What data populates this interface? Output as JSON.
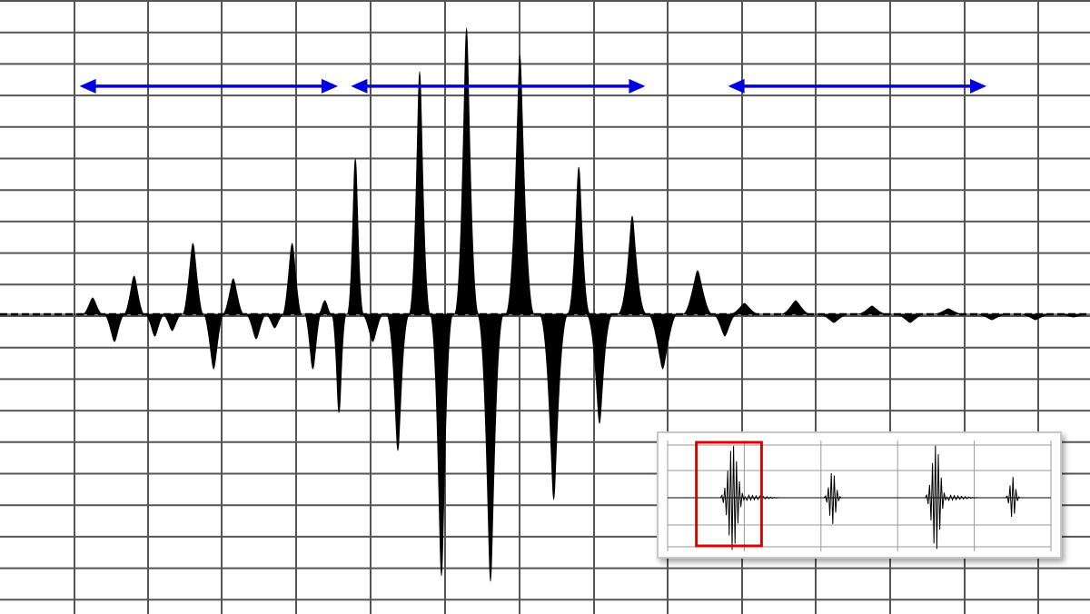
{
  "colors": {
    "background": "#ffffff",
    "grid": "#555555",
    "waveform": "#000000",
    "arrows": "#0000e0",
    "highlight": "#e00000",
    "inset_border": "#c8c8c8"
  },
  "main_plot": {
    "baseline_level": 0,
    "peaks": [
      {
        "t": 0.085,
        "a": 0.06
      },
      {
        "t": 0.105,
        "a": -0.1
      },
      {
        "t": 0.123,
        "a": 0.14
      },
      {
        "t": 0.142,
        "a": -0.08
      },
      {
        "t": 0.158,
        "a": -0.06
      },
      {
        "t": 0.177,
        "a": 0.26
      },
      {
        "t": 0.196,
        "a": -0.2
      },
      {
        "t": 0.214,
        "a": 0.13
      },
      {
        "t": 0.235,
        "a": -0.09
      },
      {
        "t": 0.252,
        "a": -0.05
      },
      {
        "t": 0.268,
        "a": 0.26
      },
      {
        "t": 0.287,
        "a": -0.2
      },
      {
        "t": 0.298,
        "a": 0.05
      },
      {
        "t": 0.311,
        "a": -0.36
      },
      {
        "t": 0.326,
        "a": 0.57
      },
      {
        "t": 0.342,
        "a": -0.1
      },
      {
        "t": 0.365,
        "a": -0.5
      },
      {
        "t": 0.385,
        "a": 0.89
      },
      {
        "t": 0.405,
        "a": -0.96
      },
      {
        "t": 0.428,
        "a": 1.05
      },
      {
        "t": 0.45,
        "a": -0.98
      },
      {
        "t": 0.477,
        "a": 0.95
      },
      {
        "t": 0.508,
        "a": -0.68
      },
      {
        "t": 0.531,
        "a": 0.54
      },
      {
        "t": 0.55,
        "a": -0.4
      },
      {
        "t": 0.58,
        "a": 0.36
      },
      {
        "t": 0.608,
        "a": -0.2
      },
      {
        "t": 0.64,
        "a": 0.16
      },
      {
        "t": 0.665,
        "a": -0.08
      },
      {
        "t": 0.683,
        "a": 0.04
      },
      {
        "t": 0.73,
        "a": 0.05
      },
      {
        "t": 0.765,
        "a": -0.03
      },
      {
        "t": 0.8,
        "a": 0.03
      },
      {
        "t": 0.835,
        "a": -0.03
      },
      {
        "t": 0.87,
        "a": 0.02
      },
      {
        "t": 0.91,
        "a": -0.02
      },
      {
        "t": 0.95,
        "a": -0.02
      },
      {
        "t": 0.985,
        "a": -0.01
      }
    ],
    "arrows": [
      {
        "t_start": 0.073,
        "t_end": 0.31,
        "level": 0.9
      },
      {
        "t_start": 0.322,
        "t_end": 0.592,
        "level": 0.9
      },
      {
        "t_start": 0.668,
        "t_end": 0.905,
        "level": 0.9
      }
    ]
  },
  "inset": {
    "bursts": [
      {
        "t": 0.17,
        "amplitude": 1.0,
        "width": 0.032,
        "tail": 0.09
      },
      {
        "t": 0.43,
        "amplitude": 0.5,
        "width": 0.022,
        "tail": 0.0
      },
      {
        "t": 0.7,
        "amplitude": 1.0,
        "width": 0.028,
        "tail": 0.08
      },
      {
        "t": 0.9,
        "amplitude": 0.4,
        "width": 0.018,
        "tail": 0.0
      }
    ],
    "highlight": {
      "t_start": 0.075,
      "t_end": 0.245
    }
  }
}
